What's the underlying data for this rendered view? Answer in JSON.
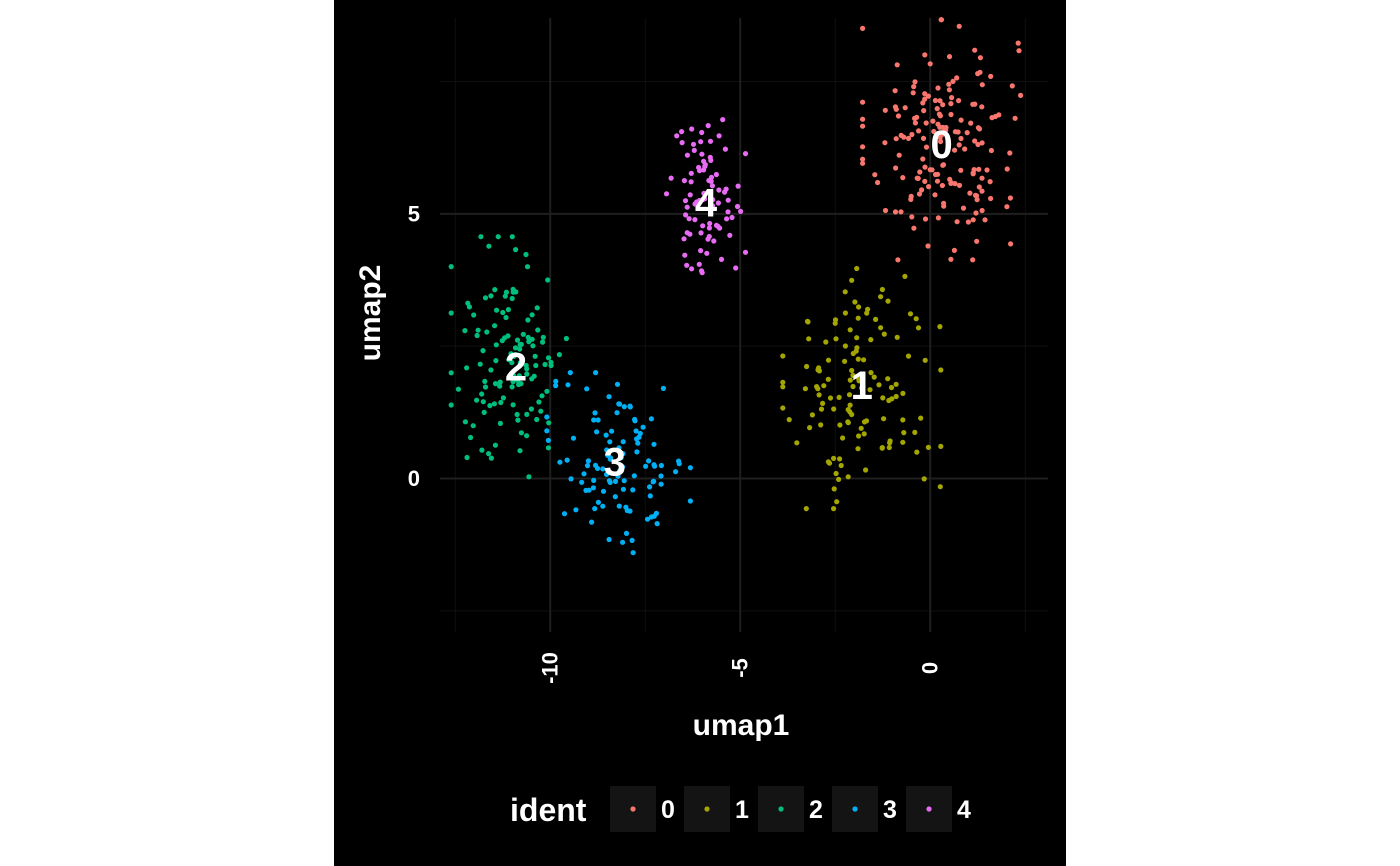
{
  "chart_data": {
    "type": "scatter",
    "title": "",
    "xlabel": "umap1",
    "ylabel": "umap2",
    "xlim": [
      -12.9,
      3.1
    ],
    "ylim": [
      -2.9,
      8.7
    ],
    "xticks": [
      -10,
      -5,
      0
    ],
    "yticks": [
      0,
      5
    ],
    "grid": true,
    "background": "#000000",
    "legend": {
      "title": "ident",
      "position": "bottom",
      "entries": [
        "0",
        "1",
        "2",
        "3",
        "4"
      ]
    },
    "clusters": [
      {
        "name": "0",
        "color": "#F8766D",
        "center": [
          0.3,
          6.4
        ],
        "spread": [
          1.1,
          1.2
        ],
        "n": 170,
        "label_pos": [
          0.3,
          6.3
        ]
      },
      {
        "name": "1",
        "color": "#A3A500",
        "center": [
          -1.8,
          1.7
        ],
        "spread": [
          1.1,
          1.2
        ],
        "n": 130,
        "label_pos": [
          -1.8,
          1.75
        ]
      },
      {
        "name": "2",
        "color": "#00BF7D",
        "center": [
          -11.0,
          2.3
        ],
        "spread": [
          0.85,
          1.2
        ],
        "n": 125,
        "label_pos": [
          -10.9,
          2.1
        ]
      },
      {
        "name": "3",
        "color": "#00B0F6",
        "center": [
          -8.2,
          0.3
        ],
        "spread": [
          1.0,
          0.9
        ],
        "n": 110,
        "label_pos": [
          -8.3,
          0.3
        ]
      },
      {
        "name": "4",
        "color": "#E76BF3",
        "center": [
          -5.9,
          5.4
        ],
        "spread": [
          0.55,
          0.8
        ],
        "n": 85,
        "label_pos": [
          -5.9,
          5.2
        ]
      }
    ]
  }
}
